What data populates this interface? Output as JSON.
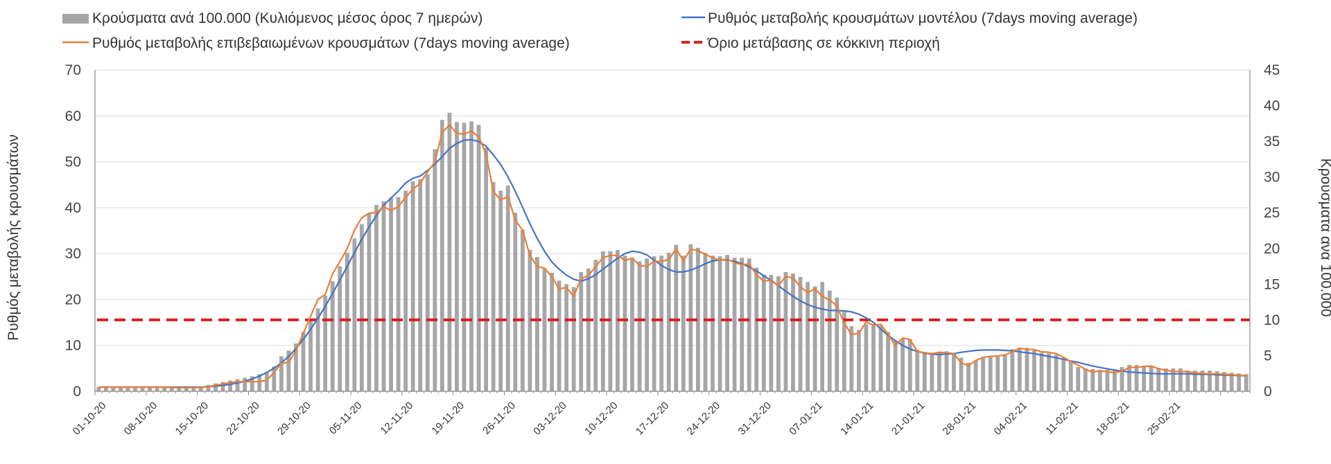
{
  "chart_data": {
    "type": "bar",
    "legend": {
      "bars": "Κρούσματα ανά 100.000 (Κυλιόμενος μέσος όρος 7 ημερών)",
      "model": "Ρυθμός μεταβολής κρουσμάτων μοντέλου (7days moving average)",
      "confirmed": "Ρυθμός μεταβολής επιβεβαιωμένων κρουσμάτων (7days moving average)",
      "threshold": "Όριο μετάβασης σε κόκκινη περιοχή"
    },
    "ylabel_left": "Ρυθμός μεταβολής κρουσμάτων",
    "ylabel_right": "Κρούσματα ανά 100.000",
    "ylim_left": [
      0,
      70
    ],
    "ylim_right": [
      0,
      45
    ],
    "yticks_left": [
      0,
      10,
      20,
      30,
      40,
      50,
      60,
      70
    ],
    "yticks_right": [
      0,
      5,
      10,
      15,
      20,
      25,
      30,
      35,
      40,
      45
    ],
    "x_tick_labels": [
      "01-10-20",
      "08-10-20",
      "15-10-20",
      "22-10-20",
      "29-10-20",
      "05-11-20",
      "12-11-20",
      "19-11-20",
      "26-11-20",
      "03-12-20",
      "10-12-20",
      "17-12-20",
      "24-12-20",
      "31-12-20",
      "07-01-21",
      "14-01-21",
      "21-01-21",
      "28-01-21",
      "04-02-21",
      "11-02-21",
      "18-02-21",
      "25-02-21"
    ],
    "threshold_right": 10,
    "bars_per_100k": [
      0.6,
      0.6,
      0.6,
      0.6,
      0.6,
      0.6,
      0.6,
      0.6,
      0.5,
      0.5,
      0.5,
      0.5,
      0.5,
      0.5,
      0.6,
      0.9,
      1.1,
      1.3,
      1.5,
      1.7,
      1.9,
      2.1,
      2.4,
      2.6,
      3.5,
      4.9,
      5.7,
      6.7,
      8.3,
      10.0,
      11.6,
      13.4,
      15.4,
      17.5,
      19.4,
      21.4,
      23.4,
      24.9,
      26.1,
      26.6,
      27.1,
      27.2,
      28.1,
      29.4,
      29.7,
      30.4,
      33.9,
      38.0,
      39.0,
      37.7,
      37.6,
      37.8,
      37.3,
      34.1,
      29.3,
      28.1,
      28.8,
      25.0,
      22.6,
      19.8,
      18.8,
      17.2,
      16.6,
      15.5,
      15.0,
      14.6,
      16.7,
      17.2,
      18.4,
      19.6,
      19.6,
      19.8,
      19.0,
      18.7,
      18.2,
      18.6,
      18.9,
      19.0,
      19.4,
      20.5,
      19.0,
      20.6,
      20.1,
      19.4,
      19.0,
      18.9,
      19.1,
      18.7,
      18.7,
      18.6,
      17.3,
      16.3,
      16.3,
      16.1,
      16.7,
      16.5,
      16.0,
      15.3,
      14.7,
      15.3,
      14.1,
      13.1,
      11.1,
      9.1,
      8.6,
      9.4,
      9.4,
      9.2,
      8.3,
      7.0,
      7.4,
      7.3,
      5.8,
      5.5,
      5.4,
      5.4,
      5.6,
      5.3,
      4.7,
      4.0,
      4.3,
      4.7,
      4.9,
      4.9,
      5.2,
      5.9,
      6.1,
      6.1,
      5.9,
      5.4,
      5.3,
      5.1,
      4.5,
      4.2,
      3.4,
      3.2,
      3.1,
      3.0,
      3.0,
      3.0,
      3.4,
      3.7,
      3.7,
      3.6,
      3.5,
      3.3,
      3.2,
      3.2,
      3.2,
      2.9,
      2.9,
      2.9,
      2.9,
      2.8,
      2.7,
      2.6,
      2.5,
      2.4
    ],
    "series": [
      {
        "name": "Ρυθμός μεταβολής επιβεβαιωμένων κρουσμάτων (7days moving average)",
        "values": [
          0.9,
          0.9,
          0.9,
          0.9,
          0.9,
          0.9,
          0.9,
          0.9,
          0.9,
          0.9,
          0.8,
          0.8,
          0.8,
          0.8,
          0.8,
          1.0,
          1.3,
          1.6,
          1.9,
          2.1,
          2.1,
          2.1,
          2.1,
          2.4,
          4.1,
          6.1,
          6.3,
          8.9,
          12.6,
          16.4,
          20.0,
          21.1,
          25.6,
          28.2,
          31.1,
          35.1,
          37.8,
          38.8,
          38.9,
          40.2,
          39.4,
          40.2,
          42.3,
          44.0,
          45.3,
          47.8,
          49.9,
          56.4,
          58.0,
          56.2,
          56.0,
          56.7,
          55.4,
          51.7,
          43.5,
          41.7,
          42.4,
          37.3,
          35.1,
          29.6,
          27.2,
          26.8,
          25.0,
          22.3,
          22.6,
          20.7,
          24.5,
          25.2,
          27.2,
          29.1,
          29.6,
          29.6,
          28.5,
          29.0,
          27.4,
          27.2,
          28.3,
          28.3,
          28.7,
          31.0,
          28.4,
          31.0,
          30.6,
          29.8,
          29.1,
          28.5,
          28.8,
          28.0,
          27.6,
          27.7,
          25.4,
          24.0,
          24.2,
          23.0,
          25.0,
          24.7,
          22.8,
          21.5,
          22.3,
          20.7,
          19.9,
          18.6,
          14.8,
          12.4,
          12.6,
          15.1,
          14.4,
          14.6,
          12.4,
          10.0,
          11.6,
          11.3,
          8.7,
          8.4,
          8.2,
          8.5,
          8.4,
          8.2,
          6.2,
          5.6,
          6.7,
          7.4,
          7.6,
          7.7,
          7.9,
          8.6,
          9.4,
          9.1,
          9.1,
          8.6,
          8.5,
          8.2,
          7.4,
          6.5,
          5.7,
          4.8,
          4.2,
          4.4,
          4.3,
          4.0,
          4.4,
          5.2,
          5.2,
          5.4,
          5.5,
          4.9,
          4.6,
          4.3,
          4.3,
          4.3,
          4.0,
          3.9,
          3.8,
          3.8,
          3.7,
          3.6,
          3.5,
          3.4
        ]
      },
      {
        "name": "Ρυθμός μεταβολής κρουσμάτων μοντέλου (7days moving average)",
        "values": [
          0.9,
          0.9,
          0.9,
          0.9,
          0.9,
          0.9,
          0.9,
          0.9,
          0.9,
          0.9,
          0.9,
          0.9,
          0.9,
          0.9,
          0.9,
          1.0,
          1.1,
          1.3,
          1.5,
          1.8,
          2.2,
          2.7,
          3.3,
          4.1,
          5.0,
          6.2,
          7.6,
          9.3,
          11.3,
          13.5,
          15.9,
          18.5,
          21.3,
          24.2,
          27.2,
          30.2,
          33.1,
          35.8,
          38.3,
          40.5,
          42.1,
          43.6,
          45.4,
          46.4,
          46.9,
          48.1,
          49.5,
          51.1,
          52.9,
          54.0,
          54.7,
          54.8,
          54.4,
          53.4,
          51.5,
          49.4,
          46.7,
          43.6,
          40.1,
          36.5,
          33.3,
          30.5,
          28.2,
          26.6,
          25.3,
          24.4,
          24.0,
          24.5,
          25.4,
          26.6,
          27.8,
          29.0,
          30.0,
          30.5,
          30.3,
          29.7,
          28.6,
          27.4,
          26.5,
          26.0,
          26.0,
          26.4,
          27.0,
          27.8,
          28.4,
          28.6,
          28.6,
          28.3,
          27.8,
          27.1,
          26.2,
          25.2,
          24.1,
          23.0,
          21.8,
          20.7,
          19.7,
          18.9,
          18.3,
          17.9,
          17.6,
          17.6,
          17.5,
          17.3,
          16.8,
          16.0,
          15.0,
          13.6,
          12.2,
          11.0,
          10.0,
          9.2,
          8.7,
          8.3,
          8.1,
          8.0,
          8.1,
          8.2,
          8.5,
          8.7,
          8.9,
          9.0,
          9.0,
          9.0,
          8.9,
          8.8,
          8.6,
          8.4,
          8.2,
          7.9,
          7.6,
          7.3,
          7.0,
          6.6,
          6.3,
          5.9,
          5.5,
          5.2,
          4.9,
          4.6,
          4.4,
          4.2,
          4.1,
          4.0,
          3.9,
          3.8,
          3.8,
          3.8,
          3.8,
          3.8,
          3.7,
          3.7,
          3.7,
          3.6,
          3.5,
          3.5,
          3.4,
          3.4
        ]
      }
    ],
    "colors": {
      "bars": "#a6a6a6",
      "model": "#4472c4",
      "confirmed": "#ed7d31",
      "threshold": "#d91f1f",
      "grid": "#dddddd"
    }
  }
}
